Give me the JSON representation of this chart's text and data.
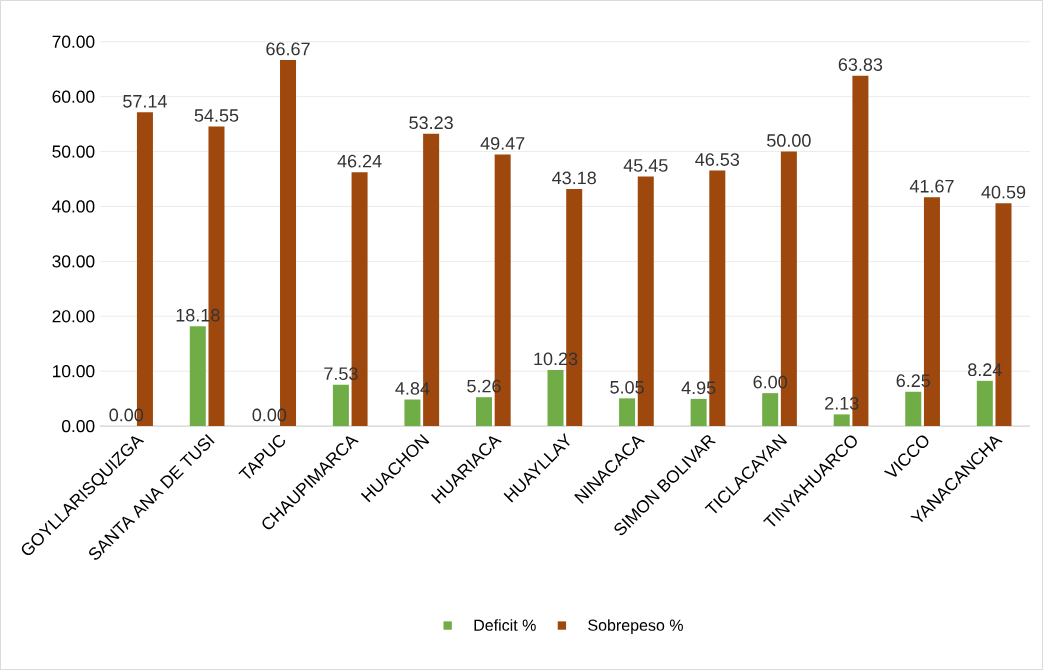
{
  "chart_data": {
    "type": "bar",
    "categories": [
      "GOYLLARISQUIZGA",
      "SANTA ANA DE TUSI",
      "TAPUC",
      "CHAUPIMARCA",
      "HUACHON",
      "HUARIACA",
      "HUAYLLAY",
      "NINACACA",
      "SIMON BOLIVAR",
      "TICLACAYAN",
      "TINYAHUARCO",
      "VICCO",
      "YANACANCHA"
    ],
    "series": [
      {
        "name": "Deficit %",
        "color": "#70ad47",
        "values": [
          0,
          18.18,
          0,
          7.53,
          4.84,
          5.26,
          10.23,
          5.05,
          4.95,
          6.0,
          2.13,
          6.25,
          8.24
        ],
        "value_labels": [
          "0.00",
          "18.18",
          "0.00",
          "7.53",
          "4.84",
          "5.26",
          "10.23",
          "5.05",
          "4.95",
          "6.00",
          "2.13",
          "6.25",
          "8.24"
        ]
      },
      {
        "name": "Sobrepeso %",
        "color": "#9e480e",
        "values": [
          57.14,
          54.55,
          66.67,
          46.24,
          53.23,
          49.47,
          43.18,
          45.45,
          46.53,
          50.0,
          63.83,
          41.67,
          40.59
        ],
        "value_labels": [
          "57.14",
          "54.55",
          "66.67",
          "46.24",
          "53.23",
          "49.47",
          "43.18",
          "45.45",
          "46.53",
          "50.00",
          "63.83",
          "41.67",
          "40.59"
        ]
      }
    ],
    "ylim": [
      0,
      70
    ],
    "yticks": [
      {
        "value": 0,
        "label": "0.00"
      },
      {
        "value": 10,
        "label": "10.00"
      },
      {
        "value": 20,
        "label": "20.00"
      },
      {
        "value": 30,
        "label": "30.00"
      },
      {
        "value": 40,
        "label": "40.00"
      },
      {
        "value": 50,
        "label": "50.00"
      },
      {
        "value": 60,
        "label": "60.00"
      },
      {
        "value": 70,
        "label": "70.00"
      }
    ],
    "grid": "y",
    "legend": "bottom"
  }
}
